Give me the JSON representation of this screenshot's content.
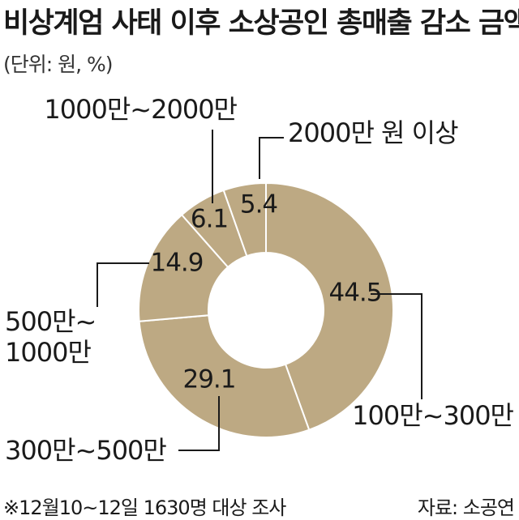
{
  "header": {
    "title": "비상계엄 사태 이후 소상공인 총매출 감소 금액",
    "unit": "(단위: 원, %)"
  },
  "footer": {
    "note": "※12월10~12일 1630명 대상 조사",
    "source": "자료: 소공연"
  },
  "colors": {
    "slice": "#bda983",
    "edge": "#ffffff",
    "leader": "#1a1a1a"
  },
  "chart_data": {
    "type": "pie",
    "style": "donut",
    "unit": "%",
    "categories": [
      "100만~300만",
      "300만~500만",
      "500만~1000만",
      "1000만~2000만",
      "2000만 원 이상"
    ],
    "values": [
      44.5,
      29.1,
      14.9,
      6.1,
      5.4
    ],
    "value_labels": [
      "44.5",
      "29.1",
      "14.9",
      "6.1",
      "5.4"
    ],
    "category_label_lines": [
      [
        "100만~300만"
      ],
      [
        "300만~500만"
      ],
      [
        "500만~",
        "1000만"
      ],
      [
        "1000만~2000만"
      ],
      [
        "2000만 원 이상"
      ]
    ],
    "start": "top, clockwise"
  }
}
